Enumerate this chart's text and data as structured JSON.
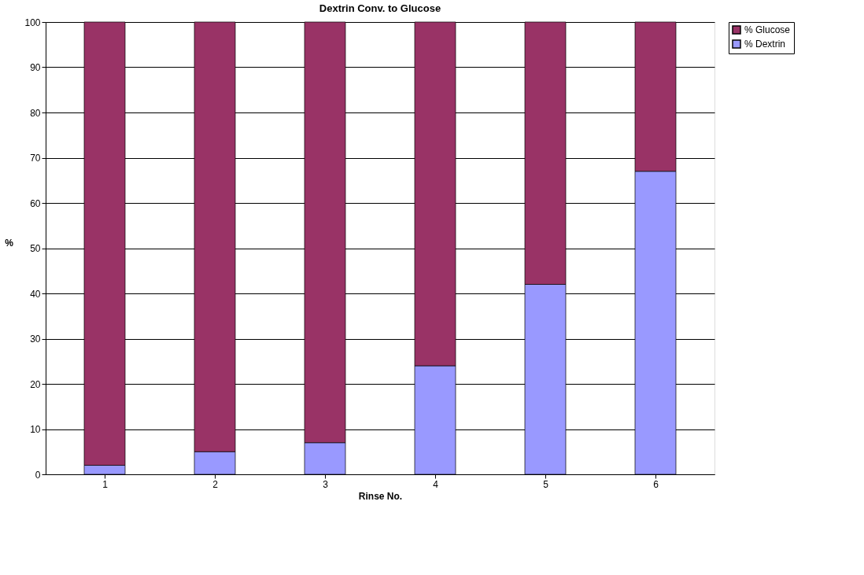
{
  "chart_data": {
    "type": "bar",
    "title": "Dextrin Conv. to Glucose",
    "xlabel": "Rinse No.",
    "ylabel": "%",
    "categories": [
      "1",
      "2",
      "3",
      "4",
      "5",
      "6"
    ],
    "stacked": true,
    "series": [
      {
        "name": "% Dextrin",
        "color": "#9999ff",
        "values": [
          2,
          5,
          7,
          24,
          42,
          67
        ]
      },
      {
        "name": "% Glucose",
        "color": "#993366",
        "values": [
          98,
          95,
          93,
          76,
          58,
          33
        ]
      }
    ],
    "ylim": [
      0,
      100
    ],
    "yticks": [
      0,
      10,
      20,
      30,
      40,
      50,
      60,
      70,
      80,
      90,
      100
    ],
    "grid": "y",
    "legend": "right"
  }
}
